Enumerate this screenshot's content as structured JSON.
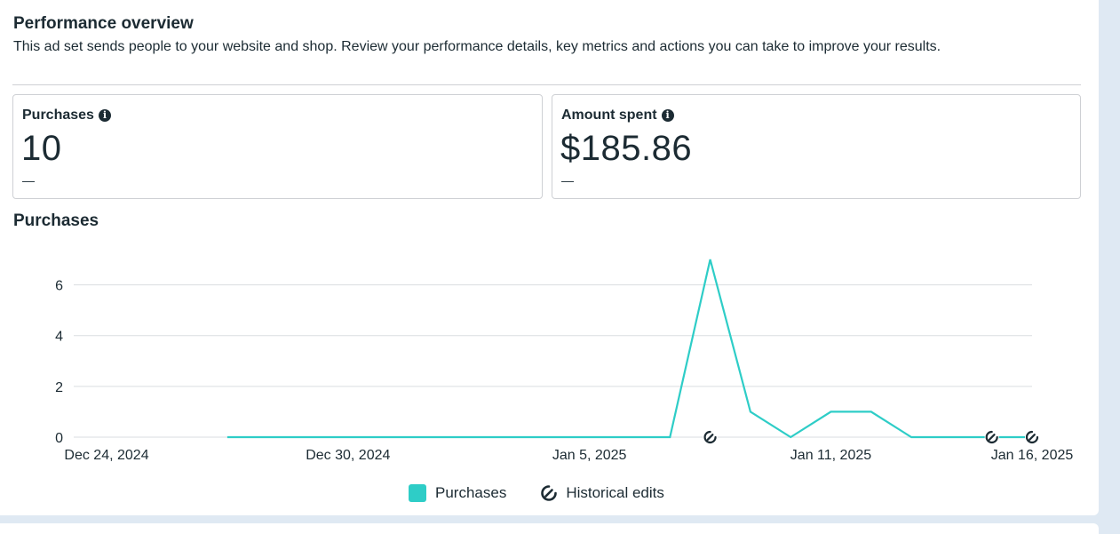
{
  "header": {
    "title": "Performance overview",
    "description": "This ad set sends people to your website and shop. Review your performance details, key metrics and actions you can take to improve your results."
  },
  "metrics": [
    {
      "label": "Purchases",
      "value": "10",
      "sub": "—"
    },
    {
      "label": "Amount spent",
      "value": "$185.86",
      "sub": "—"
    }
  ],
  "chart_section": {
    "title": "Purchases"
  },
  "legend": {
    "purchases": "Purchases",
    "historical_edits": "Historical edits"
  },
  "colors": {
    "series": "#2ecdc7",
    "grid": "#dadde1",
    "text": "#1c2b33"
  },
  "chart_data": {
    "type": "line",
    "x_ticks": [
      "Dec 24, 2024",
      "Dec 30, 2024",
      "Jan 5, 2025",
      "Jan 11, 2025",
      "Jan 16, 2025"
    ],
    "x_tick_dates": [
      "2024-12-24",
      "2024-12-30",
      "2025-01-05",
      "2025-01-11",
      "2025-01-16"
    ],
    "y_ticks": [
      0,
      2,
      4,
      6
    ],
    "ylim": [
      0,
      7
    ],
    "series": [
      {
        "name": "Purchases",
        "points": [
          {
            "x": "2024-12-27",
            "y": 0
          },
          {
            "x": "2024-12-28",
            "y": 0
          },
          {
            "x": "2024-12-29",
            "y": 0
          },
          {
            "x": "2024-12-30",
            "y": 0
          },
          {
            "x": "2024-12-31",
            "y": 0
          },
          {
            "x": "2025-01-01",
            "y": 0
          },
          {
            "x": "2025-01-02",
            "y": 0
          },
          {
            "x": "2025-01-03",
            "y": 0
          },
          {
            "x": "2025-01-04",
            "y": 0
          },
          {
            "x": "2025-01-05",
            "y": 0
          },
          {
            "x": "2025-01-06",
            "y": 0
          },
          {
            "x": "2025-01-07",
            "y": 0
          },
          {
            "x": "2025-01-08",
            "y": 7
          },
          {
            "x": "2025-01-09",
            "y": 1
          },
          {
            "x": "2025-01-10",
            "y": 0
          },
          {
            "x": "2025-01-11",
            "y": 1
          },
          {
            "x": "2025-01-12",
            "y": 1
          },
          {
            "x": "2025-01-13",
            "y": 0
          },
          {
            "x": "2025-01-14",
            "y": 0
          },
          {
            "x": "2025-01-15",
            "y": 0
          },
          {
            "x": "2025-01-16",
            "y": 0
          }
        ]
      }
    ],
    "historical_edits": [
      "2025-01-08",
      "2025-01-15",
      "2025-01-16"
    ],
    "grid": true,
    "legend_position": "bottom-center"
  }
}
